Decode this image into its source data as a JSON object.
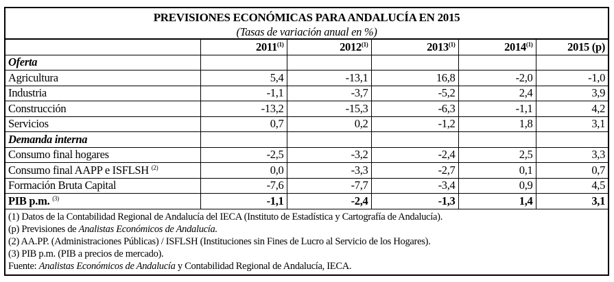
{
  "title": "PREVISIONES ECONÓMICAS PARA ANDALUCÍA EN 2015",
  "subtitle": "(Tasas de variación anual en %)",
  "columns": [
    {
      "label": "2011",
      "sup": "(1)"
    },
    {
      "label": "2012",
      "sup": "(1)"
    },
    {
      "label": "2013",
      "sup": "(1)"
    },
    {
      "label": "2014",
      "sup": "(1)"
    },
    {
      "label": "2015 (p)",
      "sup": ""
    }
  ],
  "rows": [
    {
      "type": "section",
      "label": "Oferta",
      "sup": "",
      "values": []
    },
    {
      "type": "data",
      "label": "Agricultura",
      "sup": "",
      "values": [
        "5,4",
        "-13,1",
        "16,8",
        "-2,0",
        "-1,0"
      ]
    },
    {
      "type": "data",
      "label": "Industria",
      "sup": "",
      "values": [
        "-1,1",
        "-3,7",
        "-5,2",
        "2,4",
        "3,9"
      ]
    },
    {
      "type": "data",
      "label": "Construcción",
      "sup": "",
      "values": [
        "-13,2",
        "-15,3",
        "-6,3",
        "-1,1",
        "4,2"
      ]
    },
    {
      "type": "data",
      "label": "Servicios",
      "sup": "",
      "values": [
        "0,7",
        "0,2",
        "-1,2",
        "1,8",
        "3,1"
      ]
    },
    {
      "type": "section",
      "label": "Demanda interna",
      "sup": "",
      "values": []
    },
    {
      "type": "data",
      "label": "Consumo final hogares",
      "sup": "",
      "values": [
        "-2,5",
        "-3,2",
        "-2,4",
        "2,5",
        "3,3"
      ]
    },
    {
      "type": "data",
      "label": "Consumo final AAPP e ISFLSH",
      "sup": "(2)",
      "values": [
        "0,0",
        "-3,3",
        "-2,7",
        "0,1",
        "0,7"
      ]
    },
    {
      "type": "data",
      "label": "Formación Bruta Capital",
      "sup": "",
      "values": [
        "-7,6",
        "-7,7",
        "-3,4",
        "0,9",
        "4,5"
      ]
    },
    {
      "type": "total",
      "label": "PIB p.m.",
      "sup": "(3)",
      "values": [
        "-1,1",
        "-2,4",
        "-1,3",
        "1,4",
        "3,1"
      ]
    }
  ],
  "notes": [
    [
      {
        "text": "(1) Datos de la Contabilidad Regional de Andalucía del IECA (Instituto de Estadística y Cartografía de Andalucía).",
        "italic": false
      }
    ],
    [
      {
        "text": "(p) Previsiones de ",
        "italic": false
      },
      {
        "text": "Analistas Económicos de Andalucía.",
        "italic": true
      }
    ],
    [
      {
        "text": "(2) AA.PP. (Administraciones Públicas) / ISFLSH (Instituciones sin Fines de Lucro al Servicio de los Hogares).",
        "italic": false
      }
    ],
    [
      {
        "text": "(3) PIB p.m. (PIB a precios de mercado).",
        "italic": false
      }
    ],
    [
      {
        "text": "Fuente: ",
        "italic": false
      },
      {
        "text": "Analistas Económicos de Andalucía",
        "italic": true
      },
      {
        "text": " y Contabilidad Regional de Andalucía, IECA.",
        "italic": false
      }
    ]
  ]
}
